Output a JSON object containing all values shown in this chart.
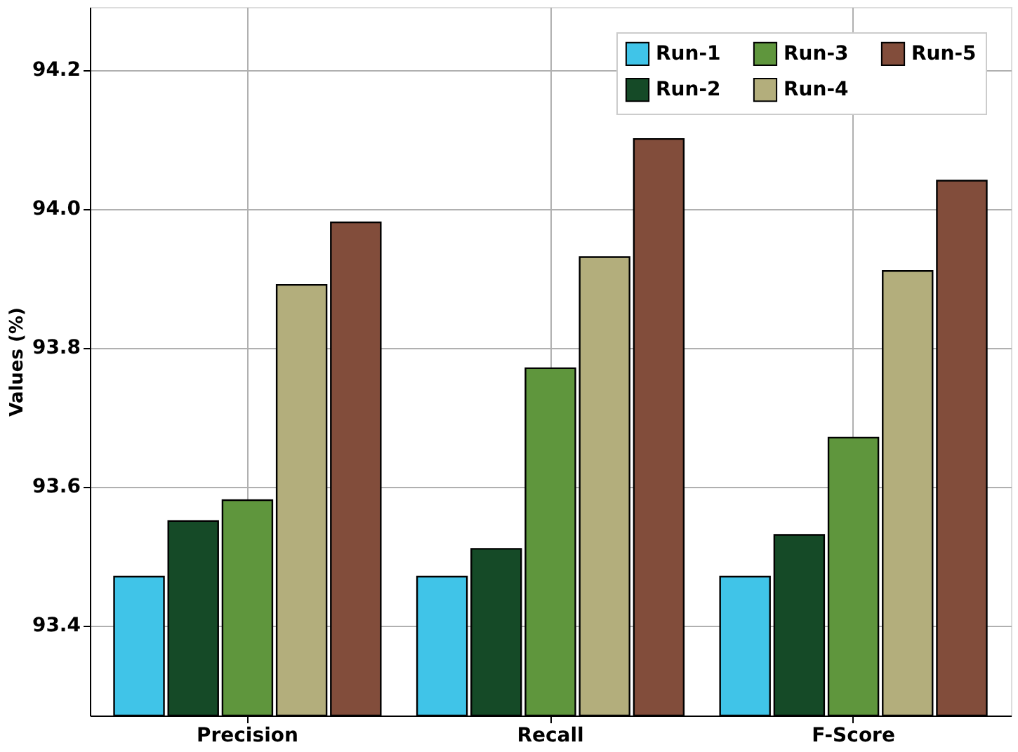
{
  "chart_data": {
    "type": "bar",
    "ylabel": "Values (%)",
    "categories": [
      "Precision",
      "Recall",
      "F-Score"
    ],
    "series": [
      {
        "name": "Run-1",
        "color": "#40c4e8",
        "values": [
          93.47,
          93.47,
          93.47
        ]
      },
      {
        "name": "Run-2",
        "color": "#154a27",
        "values": [
          93.55,
          93.51,
          93.53
        ]
      },
      {
        "name": "Run-3",
        "color": "#5f963d",
        "values": [
          93.58,
          93.77,
          93.67
        ]
      },
      {
        "name": "Run-4",
        "color": "#b3ae7c",
        "values": [
          93.89,
          93.93,
          93.91
        ]
      },
      {
        "name": "Run-5",
        "color": "#824d3b",
        "values": [
          93.98,
          94.1,
          94.04
        ]
      }
    ],
    "ylim": [
      93.27,
      94.29
    ],
    "yticks": [
      93.4,
      93.6,
      93.8,
      {
        "value": 94,
        "label": "94.0"
      },
      94.2
    ],
    "grid": true,
    "legend": "top right"
  }
}
